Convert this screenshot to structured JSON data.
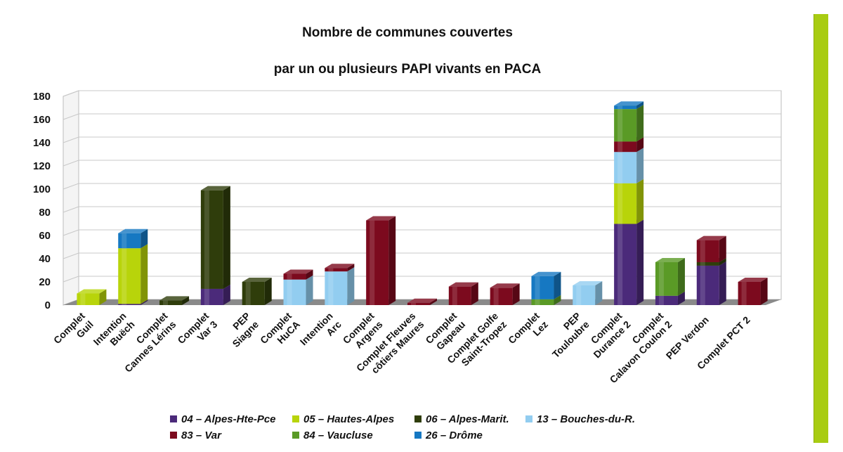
{
  "colors": {
    "side_bar": "#a8cc12",
    "grid": "#c8c8c8",
    "plot_bg": "#ffffff"
  },
  "chart_data": {
    "type": "bar",
    "stacked": true,
    "three_d": true,
    "title_lines": [
      "Nombre de communes couvertes",
      "par un ou plusieurs PAPI vivants en PACA"
    ],
    "xlabel": "",
    "ylabel": "",
    "ylim": [
      0,
      180
    ],
    "yticks": [
      0,
      20,
      40,
      60,
      80,
      100,
      120,
      140,
      160,
      180
    ],
    "grid": true,
    "legend_position": "bottom",
    "categories": [
      [
        "Complet",
        "Guil"
      ],
      [
        "Intention",
        "Buëch"
      ],
      [
        "Complet",
        "Cannes Lérins"
      ],
      [
        "Complet",
        "Var 3"
      ],
      [
        "PEP",
        "Siagne"
      ],
      [
        "Complet",
        "HuCA"
      ],
      [
        "Intention",
        "Arc"
      ],
      [
        "Complet",
        "Argens"
      ],
      [
        "Complet Fleuves",
        "côtiers Maures"
      ],
      [
        "Complet",
        "Gapeau"
      ],
      [
        "Complet Golfe",
        "Saint-Tropez"
      ],
      [
        "Complet",
        "Lez"
      ],
      [
        "PEP",
        "Touloubre"
      ],
      [
        "Complet",
        "Durance 2"
      ],
      [
        "Complet",
        "Calavon Coulon 2"
      ],
      [
        "PEP Verdon"
      ],
      [
        "Complet PCT 2"
      ]
    ],
    "series": [
      {
        "name": "04 – Alpes-Hte-Pce",
        "color": "#4b2a7a",
        "values": [
          0,
          1,
          0,
          14,
          0,
          0,
          0,
          0,
          0,
          0,
          0,
          0,
          0,
          70,
          8,
          34,
          0
        ]
      },
      {
        "name": "05 – Hautes-Alpes",
        "color": "#b8d40a",
        "values": [
          10,
          48,
          0,
          0,
          0,
          0,
          0,
          0,
          0,
          0,
          0,
          0,
          0,
          35,
          0,
          0,
          0
        ]
      },
      {
        "name": "06 – Alpes-Marit.",
        "color": "#2f3d0b",
        "values": [
          0,
          0,
          4,
          85,
          20,
          0,
          0,
          0,
          0,
          0,
          0,
          0,
          0,
          0,
          0,
          3,
          0
        ]
      },
      {
        "name": "13 – Bouches-du-R.",
        "color": "#92cdf0",
        "values": [
          0,
          0,
          0,
          0,
          0,
          22,
          29,
          0,
          0,
          0,
          0,
          0,
          17,
          27,
          0,
          0,
          0
        ]
      },
      {
        "name": "83 – Var",
        "color": "#7c0a1e",
        "values": [
          0,
          0,
          0,
          0,
          0,
          5,
          3,
          73,
          2,
          16,
          15,
          0,
          0,
          9,
          0,
          19,
          20
        ]
      },
      {
        "name": "84 – Vaucluse",
        "color": "#5a9a26",
        "values": [
          0,
          0,
          0,
          0,
          0,
          0,
          0,
          0,
          0,
          0,
          0,
          5,
          0,
          28,
          29,
          0,
          0
        ]
      },
      {
        "name": "26 – Drôme",
        "color": "#1678c2",
        "values": [
          0,
          13,
          0,
          0,
          0,
          0,
          0,
          0,
          0,
          0,
          0,
          20,
          0,
          3,
          0,
          0,
          0
        ]
      }
    ],
    "legend_rows": [
      [
        0,
        1,
        2,
        3
      ],
      [
        4,
        5,
        6
      ]
    ]
  }
}
